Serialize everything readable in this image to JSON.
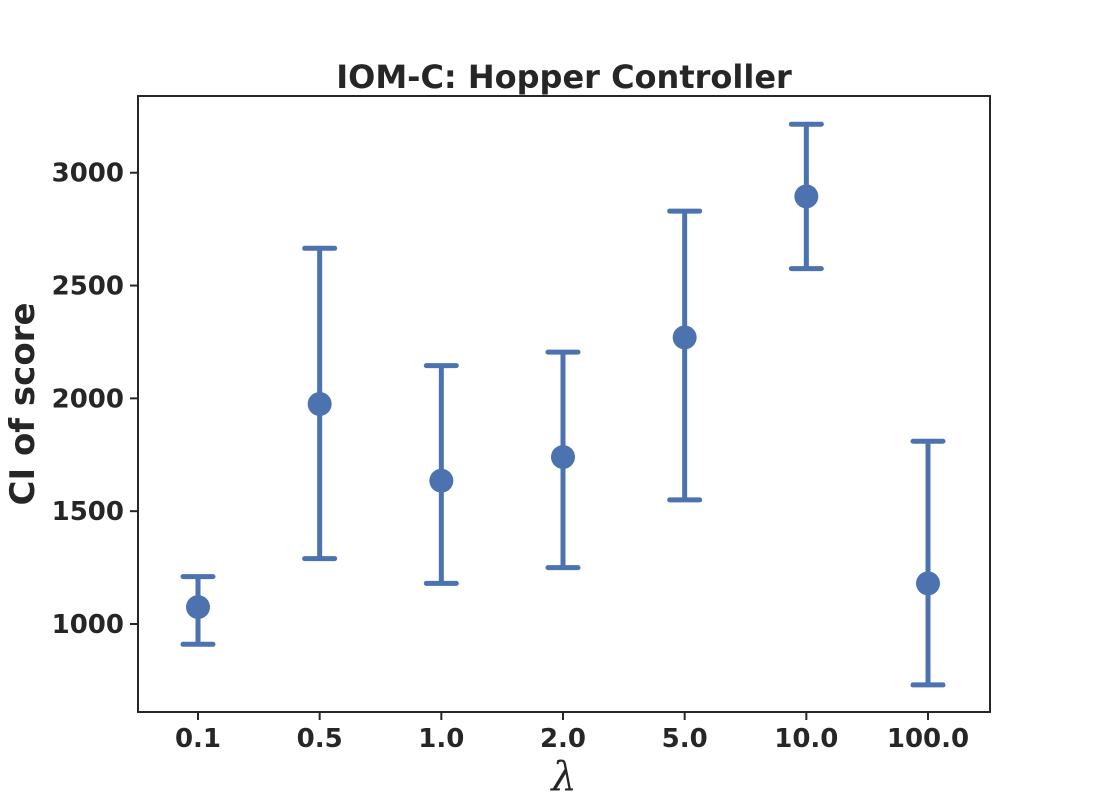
{
  "chart_data": {
    "type": "scatter",
    "title": "IOM-C: Hopper Controller",
    "xlabel": "λ",
    "ylabel": "CI of score",
    "categories": [
      "0.1",
      "0.5",
      "1.0",
      "2.0",
      "5.0",
      "10.0",
      "100.0"
    ],
    "series": [
      {
        "values": [
          1075,
          1975,
          1635,
          1740,
          2270,
          2895,
          1180
        ],
        "lower": [
          910,
          1290,
          1180,
          1250,
          1550,
          2575,
          730
        ],
        "upper": [
          1210,
          2665,
          2145,
          2205,
          2830,
          3215,
          1810
        ]
      }
    ],
    "ylim": [
      610,
      3340
    ],
    "yticks": [
      1000,
      1500,
      2000,
      2500,
      3000
    ],
    "grid": false,
    "legend": "none",
    "colors": {
      "marker": "#4c72b0",
      "axis": "#262626"
    }
  }
}
